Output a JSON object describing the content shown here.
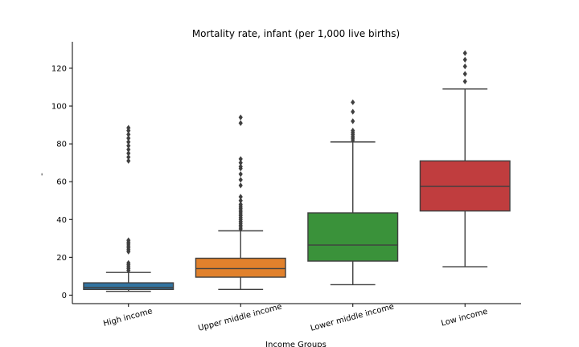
{
  "chart_data": {
    "type": "box",
    "title": "Mortality rate, infant (per 1,000 live births)",
    "xlabel": "Income Groups",
    "ylabel": "-",
    "ylim": [
      -4.5,
      134
    ],
    "yticks": [
      0,
      20,
      40,
      60,
      80,
      100,
      120
    ],
    "grid": false,
    "legend": "none",
    "categories": [
      "High income",
      "Upper middle income",
      "Lower middle income",
      "Low income"
    ],
    "colors": [
      "#3274a1",
      "#e1812c",
      "#3a923a",
      "#c03d3e"
    ],
    "boxes": [
      {
        "category": "High income",
        "whisker_low": 2,
        "q1": 3,
        "median": 4,
        "q3": 6.5,
        "whisker_high": 12,
        "outliers": [
          13,
          14,
          15,
          16,
          17,
          23,
          24,
          25,
          26,
          27,
          28,
          29,
          71,
          73,
          75,
          77,
          79,
          81,
          83,
          85,
          87,
          88.5
        ]
      },
      {
        "category": "Upper middle income",
        "whisker_low": 3,
        "q1": 9.5,
        "median": 14,
        "q3": 19.5,
        "whisker_high": 34,
        "outliers": [
          35,
          36,
          37,
          38,
          39,
          40,
          41,
          42,
          43,
          44,
          45,
          46,
          47,
          48,
          50,
          52,
          58,
          61,
          64,
          67,
          68,
          70,
          72,
          91,
          94
        ]
      },
      {
        "category": "Lower middle income",
        "whisker_low": 5.5,
        "q1": 18,
        "median": 26.5,
        "q3": 43.5,
        "whisker_high": 81,
        "outliers": [
          82,
          83,
          84,
          85,
          86,
          87,
          92,
          97,
          102
        ]
      },
      {
        "category": "Low income",
        "whisker_low": 15,
        "q1": 44.5,
        "median": 57.5,
        "q3": 71,
        "whisker_high": 109,
        "outliers": [
          113,
          117,
          121,
          124.5,
          128
        ]
      }
    ]
  }
}
